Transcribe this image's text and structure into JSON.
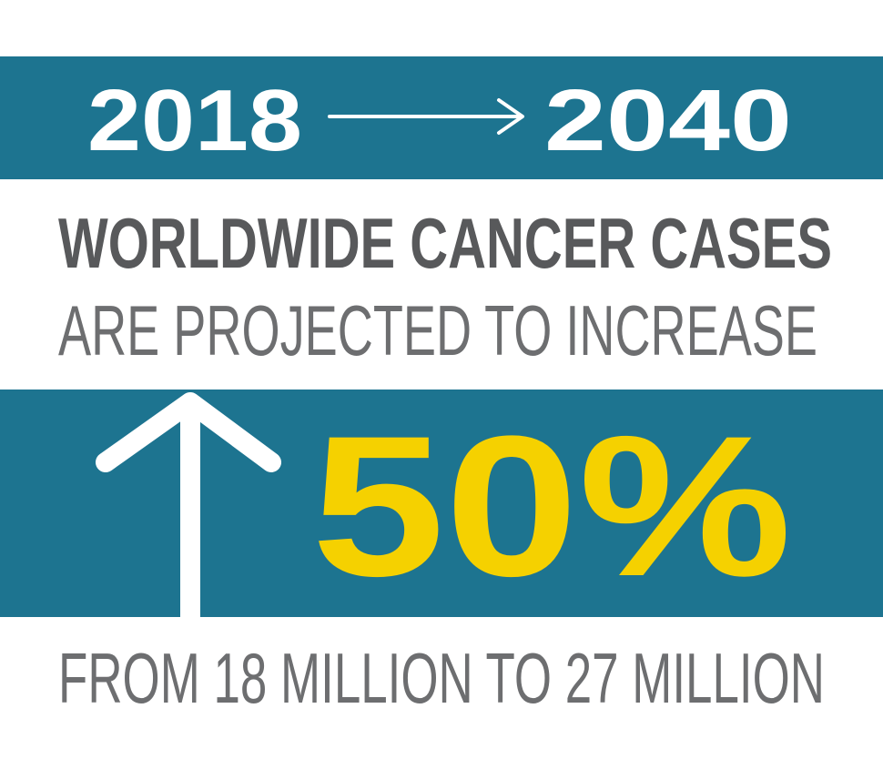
{
  "header": {
    "start_year": "2018",
    "end_year": "2040"
  },
  "headline": "WORLDWIDE CANCER CASES",
  "subline": "ARE PROJECTED TO INCREASE",
  "increase": "50%",
  "detail": "FROM 18 MILLION TO 27 MILLION"
}
